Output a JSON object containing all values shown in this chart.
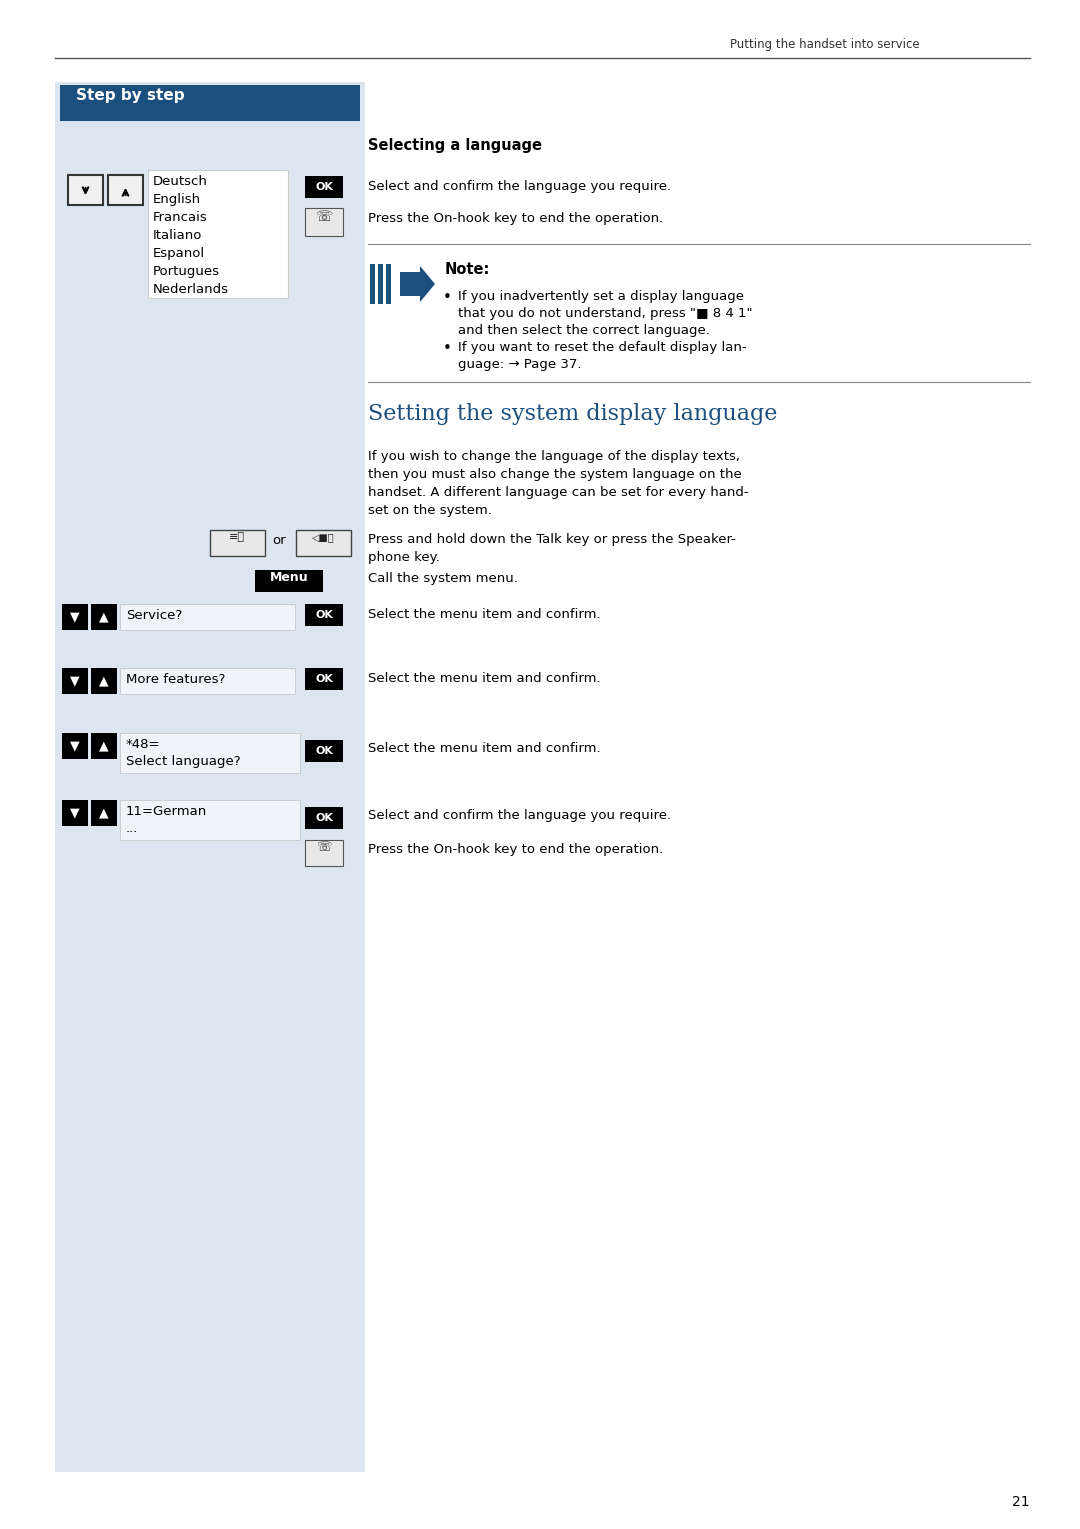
{
  "page_header": "Putting the handset into service",
  "step_by_step_bg": "#1b4f7e",
  "step_by_step_text": "Step by step",
  "left_panel_bg": "#dde6f0",
  "page_bg": "#ffffff",
  "section1_title": "Selecting a language",
  "languages": [
    "Deutsch",
    "English",
    "Francais",
    "Italiano",
    "Espanol",
    "Portugues",
    "Nederlands"
  ],
  "select_confirm_text": "Select and confirm the language you require.",
  "on_hook_text": "Press the On-hook key to end the operation.",
  "note_title": "Note:",
  "note_bullet1a": "If you inadvertently set a display language",
  "note_bullet1b": "that you do not understand, press \"■ 8 4 1\"",
  "note_bullet1c": "and then select the correct language.",
  "note_bullet2a": "If you want to reset the default display lan-",
  "note_bullet2b": "guage: → Page 37.",
  "section2_title": "Setting the system display language",
  "section2_title_color": "#1b4f7e",
  "intro_text_lines": [
    "If you wish to change the language of the display texts,",
    "then you must also change the system language on the",
    "handset. A different language can be set for every hand-",
    "set on the system."
  ],
  "talk_key_text_lines": [
    "Press and hold down the Talk key or press the Speaker-",
    "phone key."
  ],
  "menu_text": "Call the system menu.",
  "service_label": "Service?",
  "service_confirm": "Select the menu item and confirm.",
  "more_features_label": "More features?",
  "more_features_confirm": "Select the menu item and confirm.",
  "star48_line1": "*48=",
  "star48_line2": "Select language?",
  "star48_confirm": "Select the menu item and confirm.",
  "german_line1": "11=German",
  "german_line2": "...",
  "german_confirm": "Select and confirm the language you require.",
  "final_onhook": "Press the On-hook key to end the operation.",
  "page_number": "21",
  "ok_bg": "#000000",
  "ok_text_color": "#ffffff",
  "menu_btn_bg": "#000000",
  "menu_btn_text_color": "#ffffff",
  "arrow_btn_bg": "#000000",
  "arrow_btn_text_color": "#ffffff",
  "label_box_bg": "#f0f4f8",
  "label_box_border": "#cccccc",
  "note_arrow_color": "#1b4f7e",
  "divider_color": "#888888"
}
